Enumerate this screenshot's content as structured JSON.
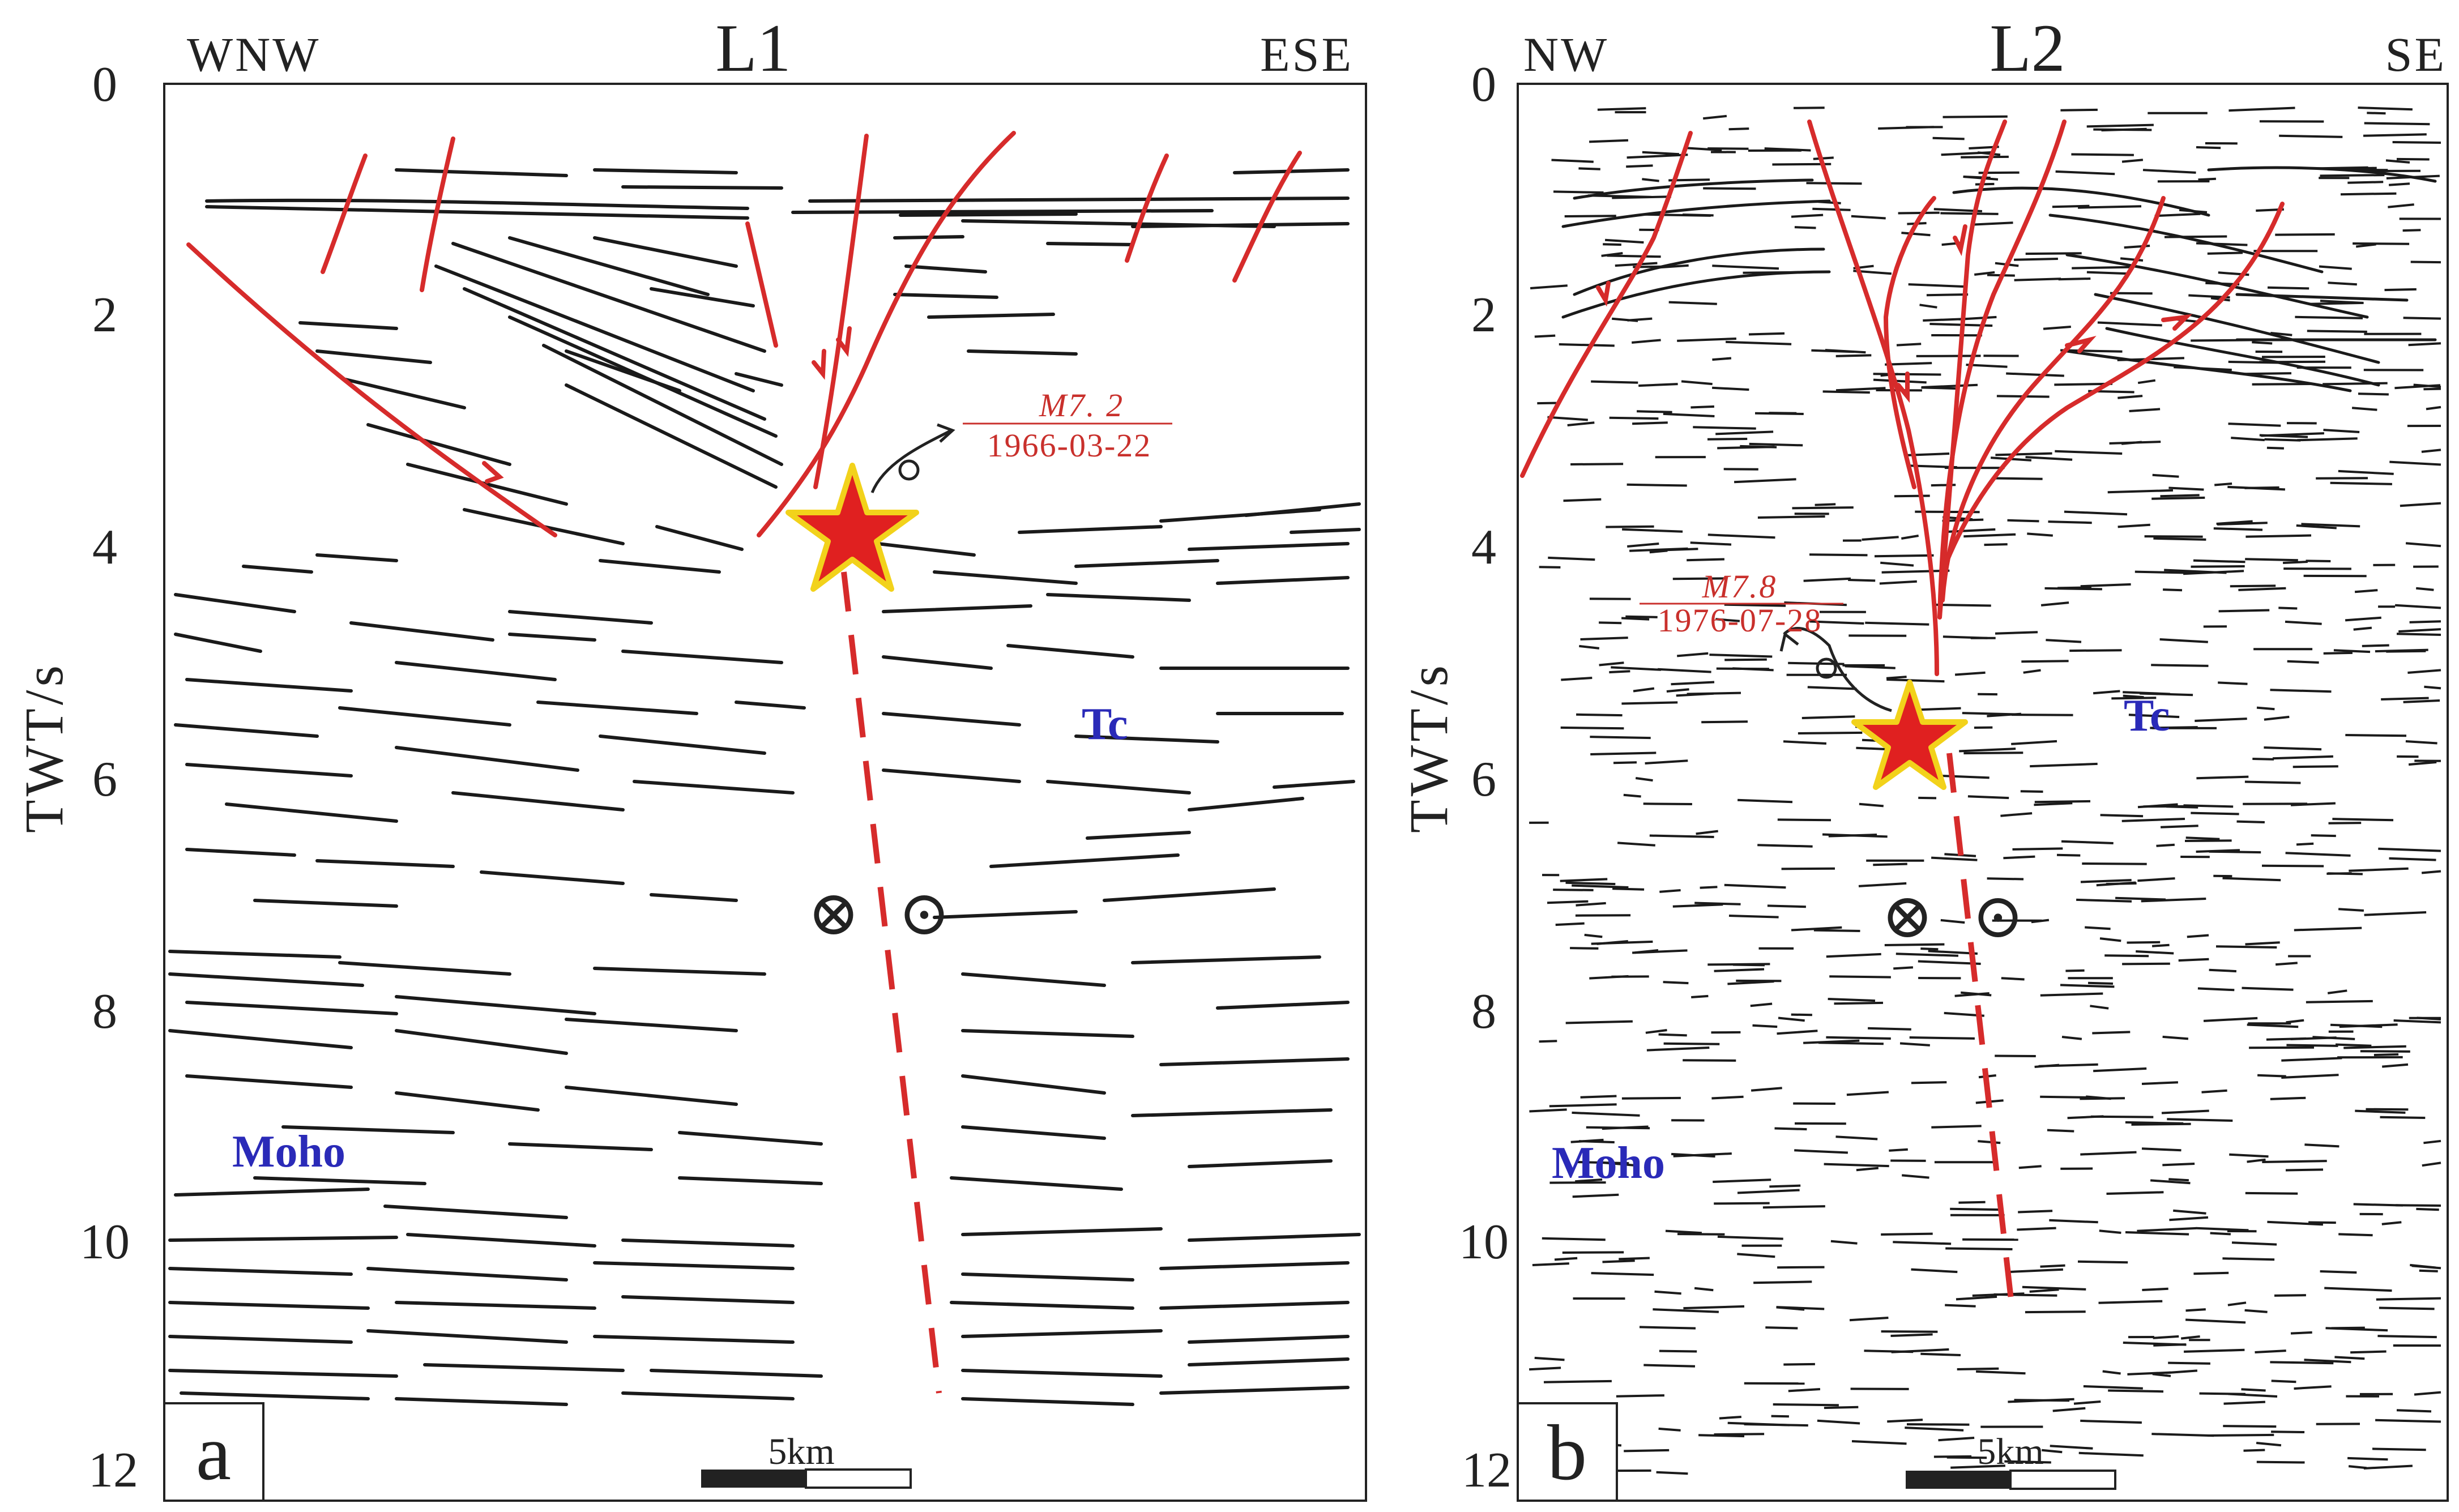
{
  "panels": [
    {
      "id": "a",
      "title": "L1",
      "dir_left": "WNW",
      "dir_right": "ESE",
      "y_ticks": [
        "0",
        "2",
        "4",
        "6",
        "8",
        "10",
        "12"
      ],
      "y_label": "TWT/s",
      "event_magnitude": "M7. 2",
      "event_date": "1966-03-22",
      "tc_label": "Tc",
      "moho_label": "Moho",
      "scale_label": "5km",
      "panel_label": "a",
      "strike_slip_symbols": [
        "⊗",
        "⊙"
      ]
    },
    {
      "id": "b",
      "title": "L2",
      "dir_left": "NW",
      "dir_right": "SE",
      "y_ticks": [
        "0",
        "2",
        "4",
        "6",
        "8",
        "10",
        "12"
      ],
      "y_label": "TWT/s",
      "event_magnitude": "M7.8",
      "event_date": "1976-07-28",
      "tc_label": "Tc",
      "moho_label": "Moho",
      "scale_label": "5km",
      "panel_label": "b",
      "strike_slip_symbols": [
        "⊗",
        "⊙"
      ]
    }
  ],
  "colors": {
    "fault": "#d62b2b",
    "reflector": "#1a1a1a",
    "tc_moho_text": "#2a2ab8",
    "epicenter_fill": "#e02020",
    "epicenter_outline": "#f2d21b"
  }
}
